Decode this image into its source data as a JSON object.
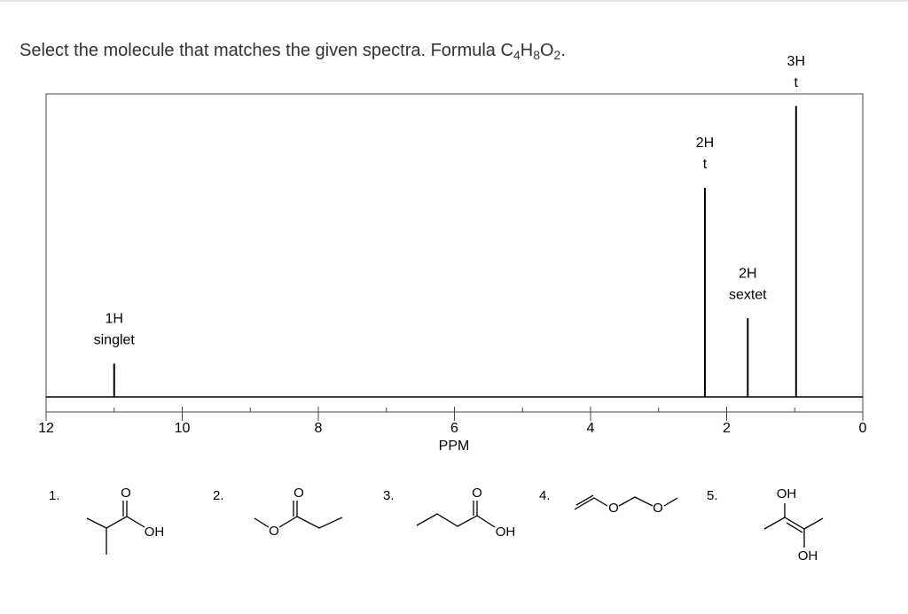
{
  "question": {
    "text": "Select the molecule that matches the given spectra. Formula C",
    "formula": [
      "4",
      "H",
      "8",
      "O",
      "2"
    ],
    "end": "."
  },
  "chart_data": {
    "type": "spectrum",
    "xlabel": "PPM",
    "xlim": [
      12,
      0
    ],
    "xticks": [
      12,
      10,
      8,
      6,
      4,
      2,
      0
    ],
    "minor_xticks": [
      11,
      9,
      7,
      5,
      3,
      1
    ],
    "ylim": [
      0,
      100
    ],
    "x": [
      11,
      2.32,
      1.69,
      0.98
    ],
    "values": [
      11,
      69,
      26,
      96
    ],
    "color": "#000000",
    "annotations": [
      [
        "1H",
        "singlet"
      ],
      [
        "2H",
        "t"
      ],
      [
        "2H",
        "sextet"
      ],
      [
        "3H",
        "t"
      ]
    ]
  },
  "options": [
    {
      "number": "1.",
      "atoms": [
        "O",
        "OH"
      ]
    },
    {
      "number": "2.",
      "atoms": [
        "O",
        "O"
      ]
    },
    {
      "number": "3.",
      "atoms": [
        "O",
        "OH"
      ]
    },
    {
      "number": "4.",
      "atoms": [
        "O",
        "O"
      ]
    },
    {
      "number": "5.",
      "atoms": [
        "OH",
        "OH"
      ]
    }
  ]
}
